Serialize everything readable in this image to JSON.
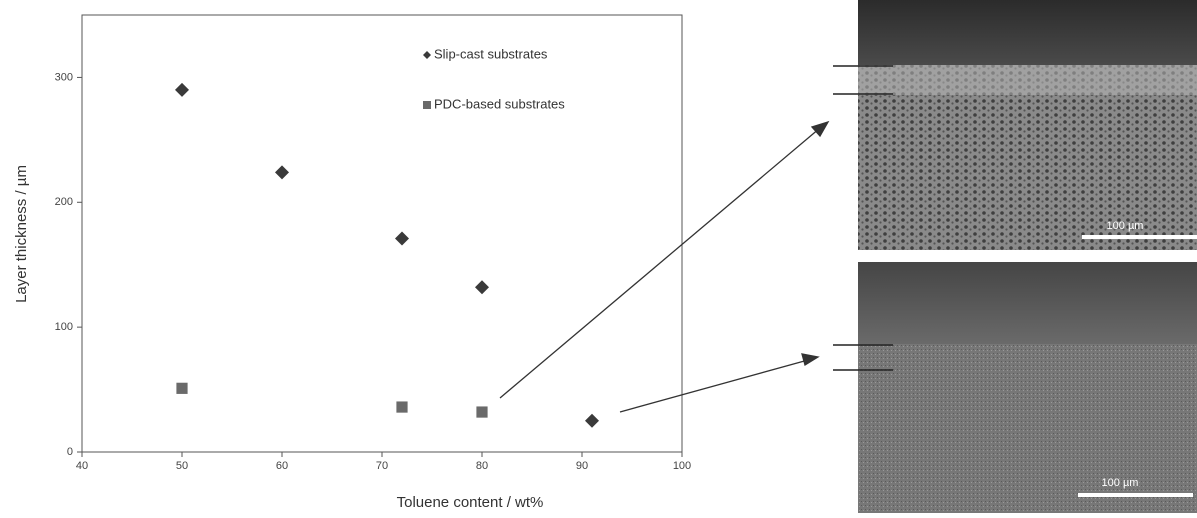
{
  "chart_data": {
    "type": "scatter",
    "x_label": "Toluene content / wt%",
    "y_label": "Layer thickness / µm",
    "xlim": [
      40,
      100
    ],
    "xticks": [
      40,
      50,
      60,
      70,
      80,
      90,
      100
    ],
    "ylim": [
      0,
      350
    ],
    "yticks": [
      0,
      100,
      200,
      300
    ],
    "legend": "top-right",
    "series": [
      {
        "name": "Slip-cast substrates",
        "color": "#3a3a3a",
        "marker": "diamond",
        "x": [
          50,
          60,
          72,
          80,
          91
        ],
        "values": [
          290,
          224,
          171,
          132,
          25
        ]
      },
      {
        "name": "PDC-based substrates",
        "color": "#6a6a6a",
        "marker": "square",
        "x": [
          50,
          72,
          80
        ],
        "values": [
          51,
          36,
          32
        ]
      }
    ]
  },
  "images": [
    {
      "scale_bar": "100 µm"
    },
    {
      "scale_bar": "100 µm"
    }
  ]
}
